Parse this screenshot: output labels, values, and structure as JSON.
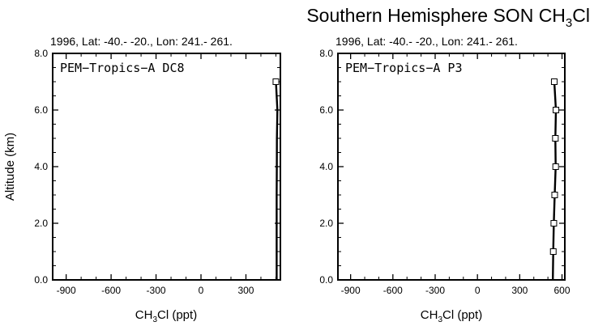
{
  "figure": {
    "title_main": "Southern Hemisphere SON CH",
    "title_sub": "3",
    "title_end": "Cl"
  },
  "chart_data": [
    {
      "type": "line",
      "subtitle": "1996, Lat: -40.- -20., Lon: 241.- 261.",
      "label": "PEM−Tropics−A DC8",
      "xlabel_main": "CH",
      "xlabel_sub": "3",
      "xlabel_end": "Cl (ppt)",
      "ylabel": "Altitude (km)",
      "xlim": [
        -990,
        530
      ],
      "ylim": [
        0,
        8
      ],
      "x_ticks": [
        -900,
        -600,
        -300,
        0,
        300
      ],
      "x_tick_labels": [
        "-900",
        "-600",
        "-300",
        "0",
        "300"
      ],
      "y_ticks": [
        0,
        2,
        4,
        6,
        8
      ],
      "y_tick_labels": [
        "0.0",
        "2.0",
        "4.0",
        "6.0",
        "8.0"
      ],
      "profile": [
        {
          "x": 505,
          "y": 0
        },
        {
          "x": 505,
          "y": 1
        },
        {
          "x": 505,
          "y": 2
        },
        {
          "x": 505,
          "y": 3
        },
        {
          "x": 506,
          "y": 4
        },
        {
          "x": 507,
          "y": 5
        },
        {
          "x": 510,
          "y": 6
        },
        {
          "x": 500,
          "y": 7
        }
      ],
      "markers": [
        {
          "x": 500,
          "y": 7
        }
      ]
    },
    {
      "type": "line",
      "subtitle": "1996, Lat: -40.- -20., Lon: 241.- 261.",
      "label": "PEM−Tropics−A P3",
      "xlabel_main": "CH",
      "xlabel_sub": "3",
      "xlabel_end": "Cl (ppt)",
      "ylabel": "",
      "xlim": [
        -990,
        620
      ],
      "ylim": [
        0,
        8
      ],
      "x_ticks": [
        -900,
        -600,
        -300,
        0,
        300,
        600
      ],
      "x_tick_labels": [
        "-900",
        "-600",
        "-300",
        "0",
        "300",
        "600"
      ],
      "y_ticks": [
        0,
        2,
        4,
        6,
        8
      ],
      "y_tick_labels": [
        "0.0",
        "2.0",
        "4.0",
        "6.0",
        "8.0"
      ],
      "profile": [
        {
          "x": 535,
          "y": 0
        },
        {
          "x": 538,
          "y": 1
        },
        {
          "x": 542,
          "y": 2
        },
        {
          "x": 548,
          "y": 3
        },
        {
          "x": 555,
          "y": 4
        },
        {
          "x": 553,
          "y": 5
        },
        {
          "x": 557,
          "y": 6
        },
        {
          "x": 545,
          "y": 7
        }
      ],
      "markers": [
        {
          "x": 538,
          "y": 1
        },
        {
          "x": 542,
          "y": 2
        },
        {
          "x": 548,
          "y": 3
        },
        {
          "x": 555,
          "y": 4
        },
        {
          "x": 553,
          "y": 5
        },
        {
          "x": 557,
          "y": 6
        },
        {
          "x": 545,
          "y": 7
        }
      ]
    }
  ]
}
